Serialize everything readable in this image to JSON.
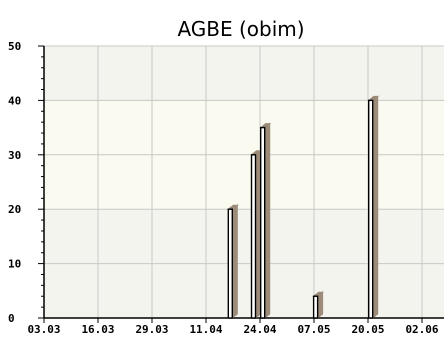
{
  "chart_data": {
    "type": "bar",
    "title": "AGBE (obim)",
    "xlabel": "",
    "ylabel": "",
    "ylim": [
      0,
      50
    ],
    "yticks": [
      0,
      10,
      20,
      30,
      40,
      50
    ],
    "grid": true,
    "bar_style": "3d",
    "x_tick_labels": [
      "03.03",
      "16.03",
      "29.03",
      "11.04",
      "24.04",
      "07.05",
      "20.05",
      "02.06"
    ],
    "values": [
      {
        "x": 3.45,
        "value": 20
      },
      {
        "x": 3.88,
        "value": 30
      },
      {
        "x": 4.05,
        "value": 35
      },
      {
        "x": 5.03,
        "value": 4
      },
      {
        "x": 6.05,
        "value": 40
      }
    ],
    "colors": {
      "plot_background": "#f4f4ee",
      "band_background": "#fafaf0",
      "grid": "#c8c8c8",
      "bar_front": "#ffffff",
      "bar_side": "#9c8b78",
      "bar_outline": "#000000"
    }
  }
}
